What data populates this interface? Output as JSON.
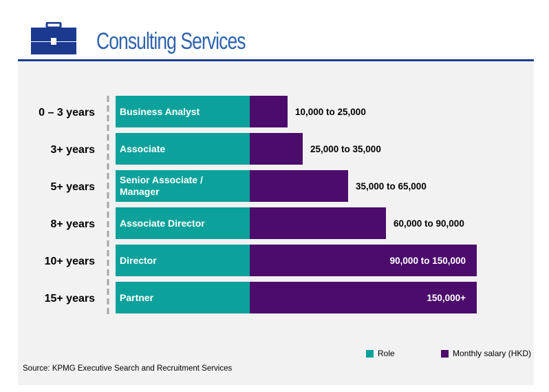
{
  "header": {
    "title": "Consulting Services",
    "icon": "briefcase-icon"
  },
  "colors": {
    "role": "#0da19b",
    "salary": "#4b0c6b",
    "accent": "#1b3a8f",
    "panel": "#f2f2f2"
  },
  "chart_data": {
    "type": "bar",
    "orientation": "horizontal",
    "stacked": true,
    "categories": [
      "0 – 3 years",
      "3+ years",
      "5+ years",
      "8+ years",
      "10+ years",
      "15+ years"
    ],
    "roles": [
      "Business Analyst",
      "Associate",
      "Senior Associate / Manager",
      "Associate Director",
      "Director",
      "Partner"
    ],
    "salary_labels": [
      "10,000 to 25,000",
      "25,000 to 35,000",
      "35,000 to 65,000",
      "60,000 to 90,000",
      "90,000 to 150,000",
      "150,000+"
    ],
    "series": [
      {
        "name": "Role",
        "values": [
          1,
          1,
          1,
          1,
          1,
          1
        ]
      },
      {
        "name": "Monthly salary (HKD)",
        "values": [
          25000,
          35000,
          65000,
          90000,
          150000,
          150000
        ]
      }
    ],
    "legend": [
      "Role",
      "Monthly salary (HKD)"
    ],
    "legend_position": "bottom-right",
    "grid": false
  },
  "footer": {
    "source": "Source: KPMG Executive Search and Recruitment Services"
  }
}
